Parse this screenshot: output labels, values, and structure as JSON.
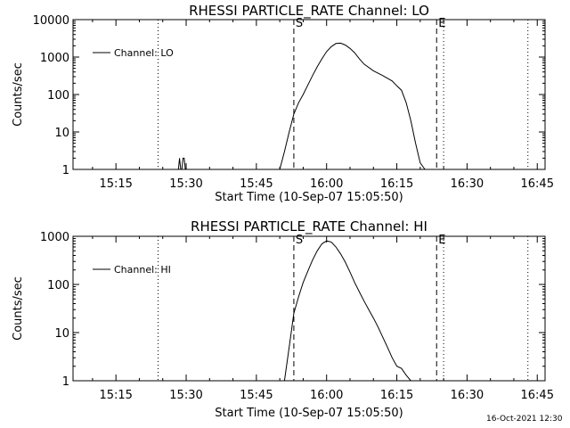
{
  "stamp": "16-Oct-2021 12:30",
  "chart_data": [
    {
      "type": "line",
      "title": "RHESSI PARTICLE_RATE Channel: LO",
      "xlabel": "Start Time (10-Sep-07 15:05:50)",
      "ylabel": "Counts/sec",
      "xscale": "time",
      "yscale": "log",
      "xlim": [
        "15:05:50",
        "16:46:40"
      ],
      "ylim": [
        1,
        10000
      ],
      "xticks": [
        "15:15",
        "15:30",
        "15:45",
        "16:00",
        "16:15",
        "16:30",
        "16:45"
      ],
      "yticks": [
        "1",
        "10",
        "100",
        "1000",
        "10000"
      ],
      "legend": {
        "position": "top-left",
        "entries": [
          "Channel: LO"
        ]
      },
      "markers": [
        {
          "time": "15:24:00",
          "style": "dotted",
          "label": ""
        },
        {
          "time": "15:53:00",
          "style": "dashed",
          "label": "S"
        },
        {
          "time": "16:23:30",
          "style": "dashed",
          "label": "E"
        },
        {
          "time": "16:25:00",
          "style": "dotted",
          "label": ""
        },
        {
          "time": "16:43:00",
          "style": "dotted",
          "label": ""
        }
      ],
      "series": [
        {
          "name": "Channel: LO",
          "x": [
            "15:28:20",
            "15:28:35",
            "15:28:50",
            "15:29:05",
            "15:29:20",
            "15:29:35",
            "15:29:50",
            "15:30:05",
            "15:30:20",
            "15:50:00",
            "15:51:00",
            "15:52:00",
            "15:53:00",
            "15:54:00",
            "15:55:00",
            "15:56:00",
            "15:57:00",
            "15:58:00",
            "15:59:00",
            "16:00:00",
            "16:01:00",
            "16:02:00",
            "16:03:00",
            "16:04:00",
            "16:05:00",
            "16:06:00",
            "16:07:00",
            "16:08:00",
            "16:10:00",
            "16:12:00",
            "16:14:00",
            "16:15:00",
            "16:16:00",
            "16:17:00",
            "16:18:00",
            "16:19:00",
            "16:20:00",
            "16:21:00"
          ],
          "values": [
            1,
            2,
            1,
            1,
            2,
            2,
            1,
            1,
            1,
            1,
            3,
            10,
            30,
            60,
            100,
            180,
            320,
            550,
            900,
            1400,
            1900,
            2300,
            2350,
            2100,
            1700,
            1300,
            900,
            650,
            430,
            320,
            230,
            170,
            130,
            60,
            20,
            5,
            1.5,
            1
          ]
        }
      ]
    },
    {
      "type": "line",
      "title": "RHESSI PARTICLE_RATE Channel: HI",
      "xlabel": "Start Time (10-Sep-07 15:05:50)",
      "ylabel": "Counts/sec",
      "xscale": "time",
      "yscale": "log",
      "xlim": [
        "15:05:50",
        "16:46:40"
      ],
      "ylim": [
        1,
        1000
      ],
      "xticks": [
        "15:15",
        "15:30",
        "15:45",
        "16:00",
        "16:15",
        "16:30",
        "16:45"
      ],
      "yticks": [
        "1",
        "10",
        "100",
        "1000"
      ],
      "legend": {
        "position": "top-left",
        "entries": [
          "Channel: HI"
        ]
      },
      "markers": [
        {
          "time": "15:24:00",
          "style": "dotted",
          "label": ""
        },
        {
          "time": "15:53:00",
          "style": "dashed",
          "label": "S"
        },
        {
          "time": "16:23:30",
          "style": "dashed",
          "label": "E"
        },
        {
          "time": "16:25:00",
          "style": "dotted",
          "label": ""
        },
        {
          "time": "16:43:00",
          "style": "dotted",
          "label": ""
        }
      ],
      "series": [
        {
          "name": "Channel: HI",
          "x": [
            "15:51:00",
            "15:52:00",
            "15:53:00",
            "15:54:00",
            "15:55:00",
            "15:56:00",
            "15:57:00",
            "15:58:00",
            "15:59:00",
            "16:00:00",
            "16:01:00",
            "16:02:00",
            "16:03:00",
            "16:04:00",
            "16:05:00",
            "16:06:00",
            "16:07:00",
            "16:08:00",
            "16:09:00",
            "16:10:00",
            "16:11:00",
            "16:12:00",
            "16:13:00",
            "16:14:00",
            "16:15:00",
            "16:16:00",
            "16:17:00",
            "16:18:00"
          ],
          "values": [
            1,
            5,
            25,
            55,
            110,
            190,
            320,
            500,
            700,
            800,
            760,
            600,
            430,
            290,
            180,
            110,
            70,
            45,
            30,
            20,
            13,
            8,
            5,
            3,
            2,
            1.8,
            1.3,
            1
          ]
        }
      ]
    }
  ]
}
